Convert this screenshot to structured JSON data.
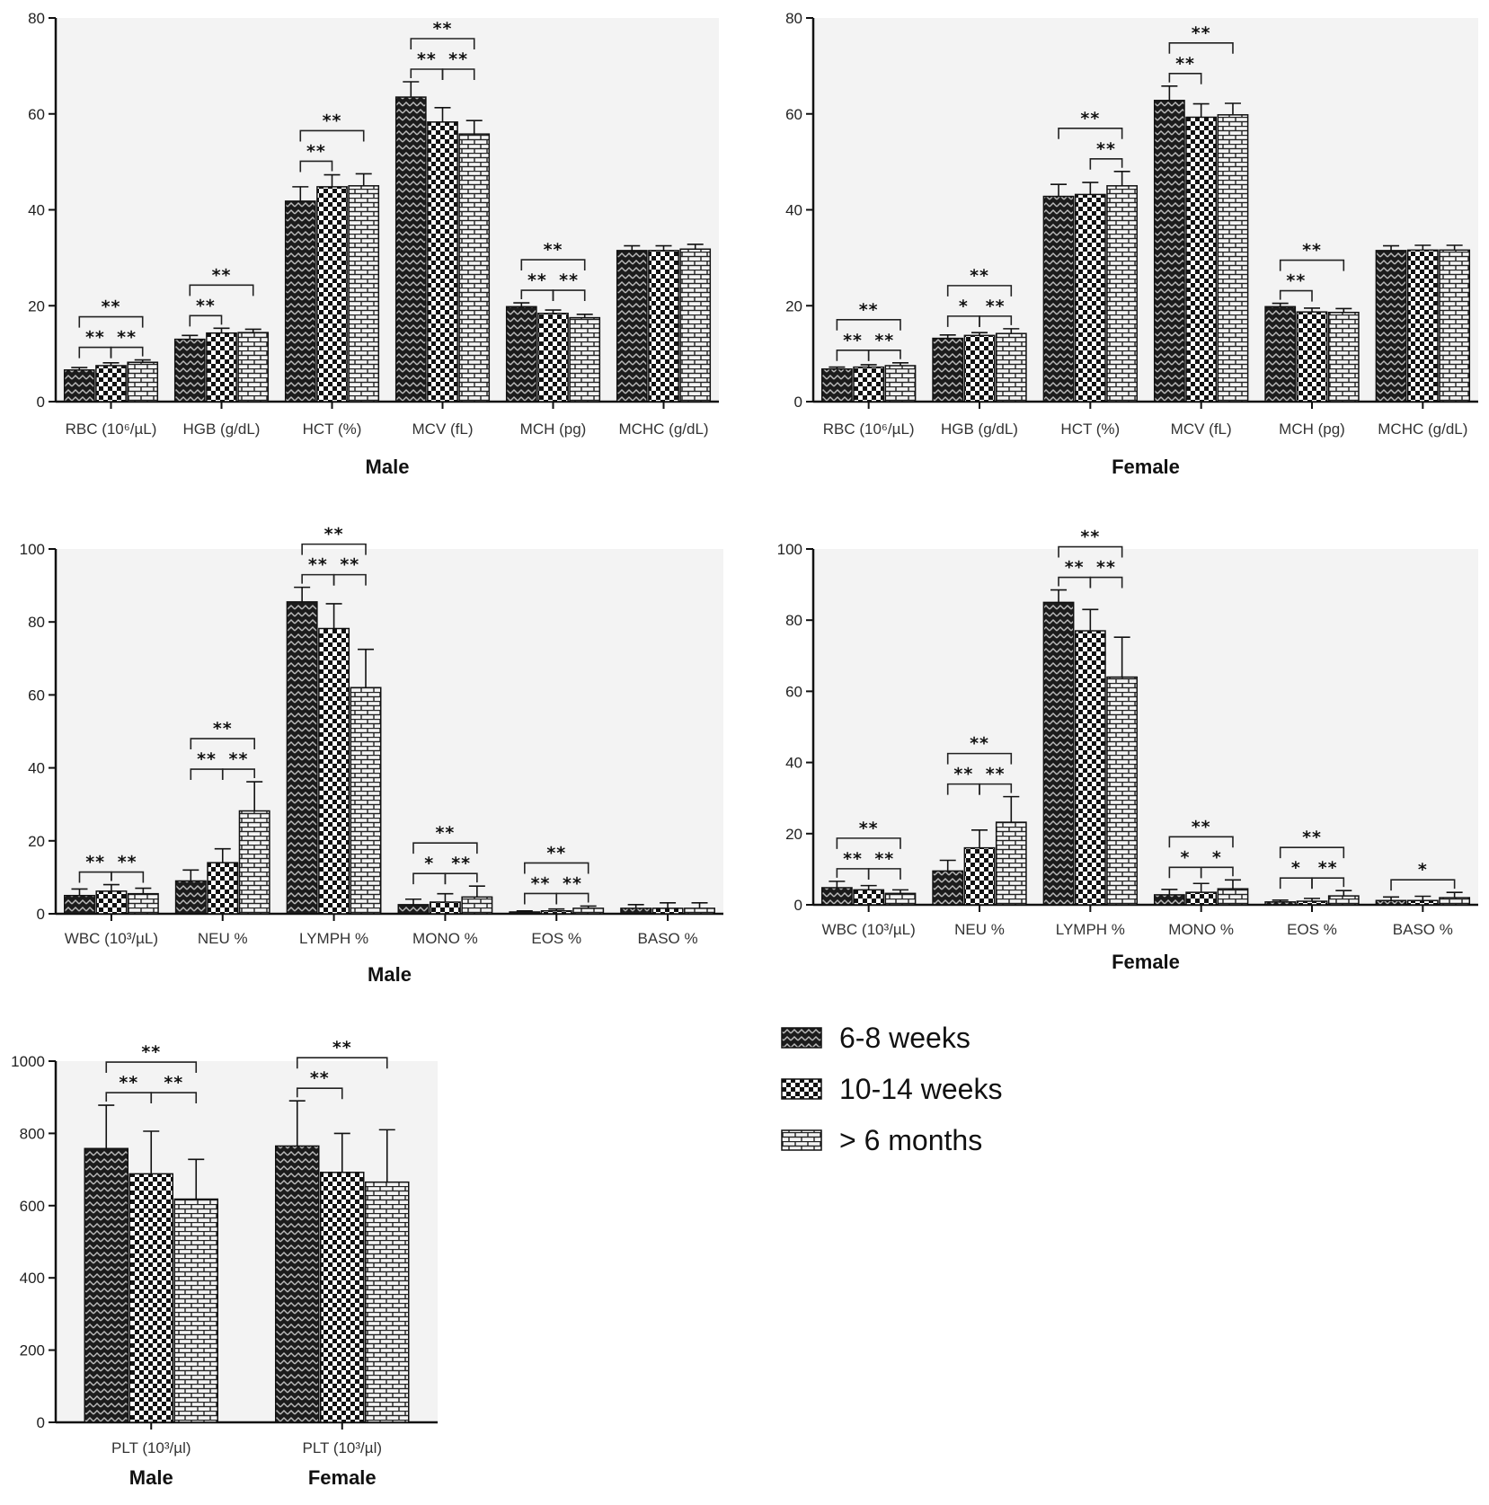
{
  "legend": [
    {
      "label": "6-8 weeks",
      "pattern": "dots"
    },
    {
      "label": "10-14 weeks",
      "pattern": "checker"
    },
    {
      "label": "> 6 months",
      "pattern": "brick"
    }
  ],
  "colors": {
    "plot_bg": "#f3f3f3",
    "bar_fill": "#1a1a1a",
    "axis": "#111111"
  },
  "chart_data": [
    {
      "type": "bar",
      "xlabel": "Male",
      "ylim": [
        0,
        80
      ],
      "yticks": [
        0,
        20,
        40,
        60,
        80
      ],
      "categories": [
        "RBC (10⁶/µL)",
        "HGB (g/dL)",
        "HCT (%)",
        "MCV (fL)",
        "MCH (pg)",
        "MCHC (g/dL)"
      ],
      "series": [
        {
          "name": "6-8 weeks",
          "values": [
            6.6,
            13.0,
            41.8,
            63.5,
            19.8,
            31.5
          ],
          "errors": [
            0.5,
            0.8,
            3.0,
            3.2,
            0.8,
            1.0
          ]
        },
        {
          "name": "10-14 weeks",
          "values": [
            7.5,
            14.3,
            44.8,
            58.3,
            18.4,
            31.5
          ],
          "errors": [
            0.6,
            1.0,
            2.5,
            3.0,
            0.7,
            1.0
          ]
        },
        {
          "name": "> 6 months",
          "values": [
            8.2,
            14.4,
            45.0,
            55.8,
            17.5,
            31.8
          ],
          "errors": [
            0.5,
            0.7,
            2.5,
            2.8,
            0.7,
            1.0
          ]
        }
      ],
      "significance": [
        {
          "category": 0,
          "bars": [
            0,
            1
          ],
          "label": "**",
          "level": 0
        },
        {
          "category": 0,
          "bars": [
            1,
            2
          ],
          "label": "**",
          "level": 0
        },
        {
          "category": 0,
          "bars": [
            0,
            2
          ],
          "label": "**",
          "level": 1
        },
        {
          "category": 1,
          "bars": [
            0,
            1
          ],
          "label": "**",
          "level": 0
        },
        {
          "category": 1,
          "bars": [
            0,
            2
          ],
          "label": "**",
          "level": 1
        },
        {
          "category": 2,
          "bars": [
            0,
            1
          ],
          "label": "**",
          "level": 0
        },
        {
          "category": 2,
          "bars": [
            0,
            2
          ],
          "label": "**",
          "level": 1
        },
        {
          "category": 3,
          "bars": [
            0,
            1
          ],
          "label": "**",
          "level": 0
        },
        {
          "category": 3,
          "bars": [
            1,
            2
          ],
          "label": "**",
          "level": 0
        },
        {
          "category": 3,
          "bars": [
            0,
            2
          ],
          "label": "**",
          "level": 1
        },
        {
          "category": 4,
          "bars": [
            0,
            1
          ],
          "label": "**",
          "level": 0
        },
        {
          "category": 4,
          "bars": [
            1,
            2
          ],
          "label": "**",
          "level": 0
        },
        {
          "category": 4,
          "bars": [
            0,
            2
          ],
          "label": "**",
          "level": 1
        }
      ]
    },
    {
      "type": "bar",
      "xlabel": "Female",
      "ylim": [
        0,
        80
      ],
      "yticks": [
        0,
        20,
        40,
        60,
        80
      ],
      "categories": [
        "RBC (10⁶/µL)",
        "HGB (g/dL)",
        "HCT (%)",
        "MCV (fL)",
        "MCH (pg)",
        "MCHC (g/dL)"
      ],
      "series": [
        {
          "name": "6-8 weeks",
          "values": [
            6.8,
            13.2,
            42.8,
            62.8,
            19.8,
            31.5
          ],
          "errors": [
            0.4,
            0.7,
            2.5,
            3.0,
            0.7,
            1.0
          ]
        },
        {
          "name": "10-14 weeks",
          "values": [
            7.2,
            13.8,
            43.2,
            59.3,
            18.7,
            31.6
          ],
          "errors": [
            0.5,
            0.6,
            2.5,
            2.8,
            0.8,
            1.0
          ]
        },
        {
          "name": "> 6 months",
          "values": [
            7.5,
            14.2,
            45.0,
            59.8,
            18.6,
            31.6
          ],
          "errors": [
            0.6,
            1.0,
            3.0,
            2.4,
            0.8,
            1.0
          ]
        }
      ],
      "significance": [
        {
          "category": 0,
          "bars": [
            0,
            1
          ],
          "label": "**",
          "level": 0
        },
        {
          "category": 0,
          "bars": [
            1,
            2
          ],
          "label": "**",
          "level": 0
        },
        {
          "category": 0,
          "bars": [
            0,
            2
          ],
          "label": "**",
          "level": 1
        },
        {
          "category": 1,
          "bars": [
            0,
            1
          ],
          "label": "*",
          "level": 0
        },
        {
          "category": 1,
          "bars": [
            1,
            2
          ],
          "label": "**",
          "level": 0
        },
        {
          "category": 1,
          "bars": [
            0,
            2
          ],
          "label": "**",
          "level": 1
        },
        {
          "category": 2,
          "bars": [
            1,
            2
          ],
          "label": "**",
          "level": 0
        },
        {
          "category": 2,
          "bars": [
            0,
            2
          ],
          "label": "**",
          "level": 1
        },
        {
          "category": 3,
          "bars": [
            0,
            1
          ],
          "label": "**",
          "level": 0
        },
        {
          "category": 3,
          "bars": [
            0,
            2
          ],
          "label": "**",
          "level": 1
        },
        {
          "category": 4,
          "bars": [
            0,
            1
          ],
          "label": "**",
          "level": 0
        },
        {
          "category": 4,
          "bars": [
            0,
            2
          ],
          "label": "**",
          "level": 1
        }
      ]
    },
    {
      "type": "bar",
      "xlabel": "Male",
      "ylim": [
        0,
        100
      ],
      "yticks": [
        0,
        20,
        40,
        60,
        80,
        100
      ],
      "categories": [
        "WBC (10³/µL)",
        "NEU %",
        "LYMPH %",
        "MONO %",
        "EOS %",
        "BASO %"
      ],
      "series": [
        {
          "name": "6-8 weeks",
          "values": [
            5.0,
            9.0,
            85.5,
            2.5,
            0.5,
            1.5
          ],
          "errors": [
            1.8,
            3.0,
            4.0,
            1.5,
            0.3,
            1.0
          ]
        },
        {
          "name": "10-14 weeks",
          "values": [
            6.2,
            14.0,
            78.2,
            3.2,
            0.8,
            1.5
          ],
          "errors": [
            1.8,
            3.8,
            6.8,
            2.3,
            0.5,
            1.5
          ]
        },
        {
          "name": "> 6 months",
          "values": [
            5.5,
            28.2,
            62.0,
            4.6,
            1.5,
            1.5
          ],
          "errors": [
            1.5,
            8.0,
            10.5,
            3.0,
            0.6,
            1.5
          ]
        }
      ],
      "significance": [
        {
          "category": 0,
          "bars": [
            0,
            1
          ],
          "label": "**",
          "level": 0
        },
        {
          "category": 0,
          "bars": [
            1,
            2
          ],
          "label": "**",
          "level": 0
        },
        {
          "category": 1,
          "bars": [
            0,
            1
          ],
          "label": "**",
          "level": 0
        },
        {
          "category": 1,
          "bars": [
            1,
            2
          ],
          "label": "**",
          "level": 0
        },
        {
          "category": 1,
          "bars": [
            0,
            2
          ],
          "label": "**",
          "level": 1
        },
        {
          "category": 2,
          "bars": [
            0,
            1
          ],
          "label": "**",
          "level": 0
        },
        {
          "category": 2,
          "bars": [
            1,
            2
          ],
          "label": "**",
          "level": 0
        },
        {
          "category": 2,
          "bars": [
            0,
            2
          ],
          "label": "**",
          "level": 1
        },
        {
          "category": 3,
          "bars": [
            0,
            1
          ],
          "label": "*",
          "level": 0
        },
        {
          "category": 3,
          "bars": [
            1,
            2
          ],
          "label": "**",
          "level": 0
        },
        {
          "category": 3,
          "bars": [
            0,
            2
          ],
          "label": "**",
          "level": 1
        },
        {
          "category": 4,
          "bars": [
            0,
            1
          ],
          "label": "**",
          "level": 0
        },
        {
          "category": 4,
          "bars": [
            1,
            2
          ],
          "label": "**",
          "level": 0
        },
        {
          "category": 4,
          "bars": [
            0,
            2
          ],
          "label": "**",
          "level": 1
        }
      ]
    },
    {
      "type": "bar",
      "xlabel": "Female",
      "ylim": [
        0,
        100
      ],
      "yticks": [
        0,
        20,
        40,
        60,
        80,
        100
      ],
      "categories": [
        "WBC (10³/µL)",
        "NEU %",
        "LYMPH %",
        "MONO %",
        "EOS %",
        "BASO %"
      ],
      "series": [
        {
          "name": "6-8 weeks",
          "values": [
            4.8,
            9.5,
            85.0,
            2.8,
            0.8,
            1.2
          ],
          "errors": [
            1.8,
            3.0,
            3.5,
            1.5,
            0.5,
            1.0
          ]
        },
        {
          "name": "10-14 weeks",
          "values": [
            4.2,
            16.0,
            77.0,
            3.5,
            1.0,
            1.2
          ],
          "errors": [
            1.2,
            5.0,
            6.0,
            2.5,
            0.8,
            1.2
          ]
        },
        {
          "name": "> 6 months",
          "values": [
            3.2,
            23.2,
            64.0,
            4.5,
            2.5,
            2.0
          ],
          "errors": [
            1.0,
            7.2,
            11.2,
            2.5,
            1.5,
            1.5
          ]
        }
      ],
      "significance": [
        {
          "category": 0,
          "bars": [
            0,
            1
          ],
          "label": "**",
          "level": 0
        },
        {
          "category": 0,
          "bars": [
            1,
            2
          ],
          "label": "**",
          "level": 0
        },
        {
          "category": 0,
          "bars": [
            0,
            2
          ],
          "label": "**",
          "level": 1
        },
        {
          "category": 1,
          "bars": [
            0,
            1
          ],
          "label": "**",
          "level": 0
        },
        {
          "category": 1,
          "bars": [
            1,
            2
          ],
          "label": "**",
          "level": 0
        },
        {
          "category": 1,
          "bars": [
            0,
            2
          ],
          "label": "**",
          "level": 1
        },
        {
          "category": 2,
          "bars": [
            0,
            1
          ],
          "label": "**",
          "level": 0
        },
        {
          "category": 2,
          "bars": [
            1,
            2
          ],
          "label": "**",
          "level": 0
        },
        {
          "category": 2,
          "bars": [
            0,
            2
          ],
          "label": "**",
          "level": 1
        },
        {
          "category": 3,
          "bars": [
            0,
            1
          ],
          "label": "*",
          "level": 0
        },
        {
          "category": 3,
          "bars": [
            1,
            2
          ],
          "label": "*",
          "level": 0
        },
        {
          "category": 3,
          "bars": [
            0,
            2
          ],
          "label": "**",
          "level": 1
        },
        {
          "category": 4,
          "bars": [
            0,
            1
          ],
          "label": "*",
          "level": 0
        },
        {
          "category": 4,
          "bars": [
            1,
            2
          ],
          "label": "**",
          "level": 0
        },
        {
          "category": 4,
          "bars": [
            0,
            2
          ],
          "label": "**",
          "level": 1
        },
        {
          "category": 5,
          "bars": [
            0,
            2
          ],
          "label": "*",
          "level": 0
        }
      ]
    },
    {
      "type": "bar",
      "xlabel": "",
      "ylim": [
        0,
        1000
      ],
      "yticks": [
        0,
        200,
        400,
        600,
        800,
        1000
      ],
      "categories": [
        "PLT (10³/µl)",
        "PLT (10³/µl)"
      ],
      "category_groups": [
        "Male",
        "Female"
      ],
      "series": [
        {
          "name": "6-8 weeks",
          "values": [
            758,
            765
          ],
          "errors": [
            120,
            125
          ]
        },
        {
          "name": "10-14 weeks",
          "values": [
            688,
            692
          ],
          "errors": [
            118,
            108
          ]
        },
        {
          "name": "> 6 months",
          "values": [
            618,
            665
          ],
          "errors": [
            110,
            145
          ]
        }
      ],
      "significance": [
        {
          "category": 0,
          "bars": [
            0,
            1
          ],
          "label": "**",
          "level": 0
        },
        {
          "category": 0,
          "bars": [
            1,
            2
          ],
          "label": "**",
          "level": 0
        },
        {
          "category": 0,
          "bars": [
            0,
            2
          ],
          "label": "**",
          "level": 1
        },
        {
          "category": 1,
          "bars": [
            0,
            1
          ],
          "label": "**",
          "level": 0
        },
        {
          "category": 1,
          "bars": [
            0,
            2
          ],
          "label": "**",
          "level": 1
        }
      ]
    }
  ]
}
